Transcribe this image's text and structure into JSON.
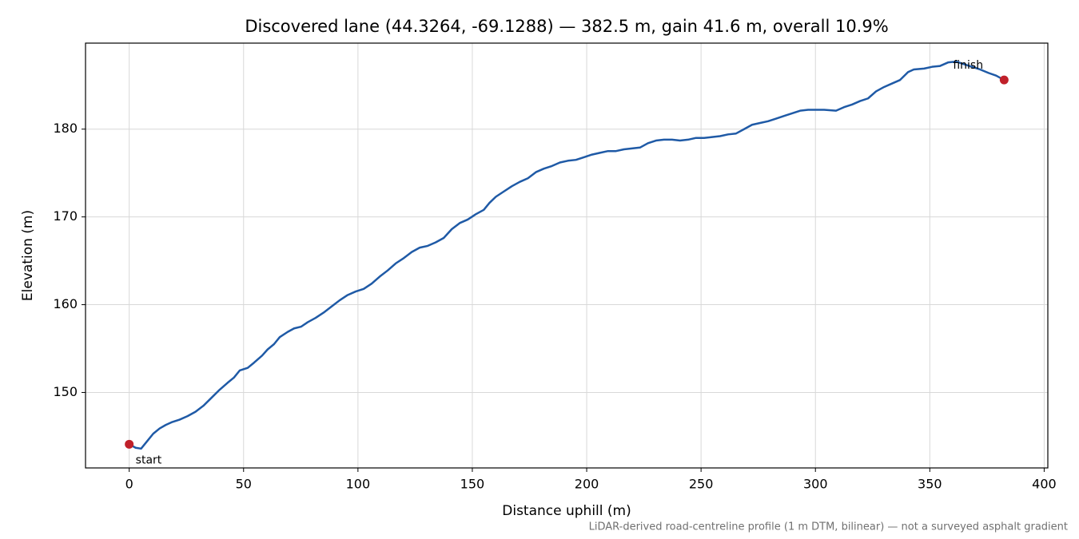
{
  "chart_data": {
    "type": "line",
    "title": "Discovered lane (44.3264, -69.1288) — 382.5 m, gain 41.6 m, overall 10.9%",
    "xlabel": "Distance uphill (m)",
    "ylabel": "Elevation (m)",
    "note": "LiDAR-derived road-centreline profile (1 m DTM, bilinear) — not a surveyed asphalt gradient",
    "color": "#1f5aa6",
    "marker_color": "#c0202a",
    "start_label": "start",
    "finish_label": "finish",
    "grid": true,
    "xlim": [
      -19.1,
      401.6
    ],
    "ylim": [
      141.4,
      189.8
    ],
    "xticks": [
      0,
      50,
      100,
      150,
      200,
      250,
      300,
      350,
      400
    ],
    "yticks": [
      150,
      160,
      170,
      180
    ],
    "x": [
      0,
      2.8,
      5.2,
      8,
      10.5,
      13.3,
      16,
      18.5,
      22,
      25.5,
      29,
      32.5,
      36,
      39.5,
      43,
      45.8,
      48.3,
      51.8,
      54.6,
      58.1,
      60.5,
      63.3,
      65.8,
      69.3,
      72.1,
      75.2,
      78,
      81.5,
      85,
      88.5,
      92,
      95.5,
      99,
      102.5,
      106,
      109.5,
      113,
      116.5,
      120,
      123.5,
      127,
      130.5,
      134,
      137.5,
      141,
      144.5,
      148,
      151.5,
      155,
      157.5,
      160.3,
      163.8,
      167.3,
      170.8,
      174.3,
      177.8,
      181.3,
      184.8,
      188.3,
      191.8,
      195.3,
      198.8,
      202.3,
      205.8,
      209.3,
      212.8,
      216.3,
      219.8,
      223.3,
      226.8,
      230.3,
      233.8,
      237.3,
      240.8,
      244.3,
      247.8,
      251.3,
      254.8,
      258.3,
      261.8,
      265.3,
      268.8,
      272.3,
      275.8,
      279.3,
      282.8,
      286.3,
      289.8,
      293.3,
      296.8,
      300.3,
      303.8,
      309,
      312.5,
      316,
      319.5,
      323,
      326.5,
      330,
      333.5,
      337,
      340.5,
      343,
      347.5,
      351,
      354.5,
      358,
      361.5,
      365,
      368.5,
      372,
      375.7,
      379,
      382.5
    ],
    "values": [
      144.1,
      143.7,
      143.6,
      144.5,
      145.3,
      145.9,
      146.3,
      146.6,
      146.9,
      147.3,
      147.8,
      148.5,
      149.4,
      150.3,
      151.1,
      151.7,
      152.5,
      152.8,
      153.4,
      154.2,
      154.9,
      155.5,
      156.3,
      156.9,
      157.3,
      157.5,
      158,
      158.5,
      159.1,
      159.8,
      160.5,
      161.1,
      161.5,
      161.8,
      162.4,
      163.2,
      163.9,
      164.7,
      165.3,
      166,
      166.5,
      166.7,
      167.1,
      167.6,
      168.6,
      169.3,
      169.7,
      170.3,
      170.8,
      171.6,
      172.3,
      172.9,
      173.5,
      174,
      174.4,
      175.1,
      175.5,
      175.8,
      176.2,
      176.4,
      176.5,
      176.8,
      177.1,
      177.3,
      177.5,
      177.5,
      177.7,
      177.8,
      177.9,
      178.4,
      178.7,
      178.8,
      178.8,
      178.7,
      178.8,
      179,
      179,
      179.1,
      179.2,
      179.4,
      179.5,
      180,
      180.5,
      180.7,
      180.9,
      181.2,
      181.5,
      181.8,
      182.1,
      182.2,
      182.2,
      182.2,
      182.1,
      182.5,
      182.8,
      183.2,
      183.5,
      184.3,
      184.8,
      185.2,
      185.6,
      186.5,
      186.8,
      186.9,
      187.1,
      187.2,
      187.6,
      187.7,
      187.4,
      187.1,
      186.8,
      186.4,
      186.1,
      185.6
    ]
  }
}
